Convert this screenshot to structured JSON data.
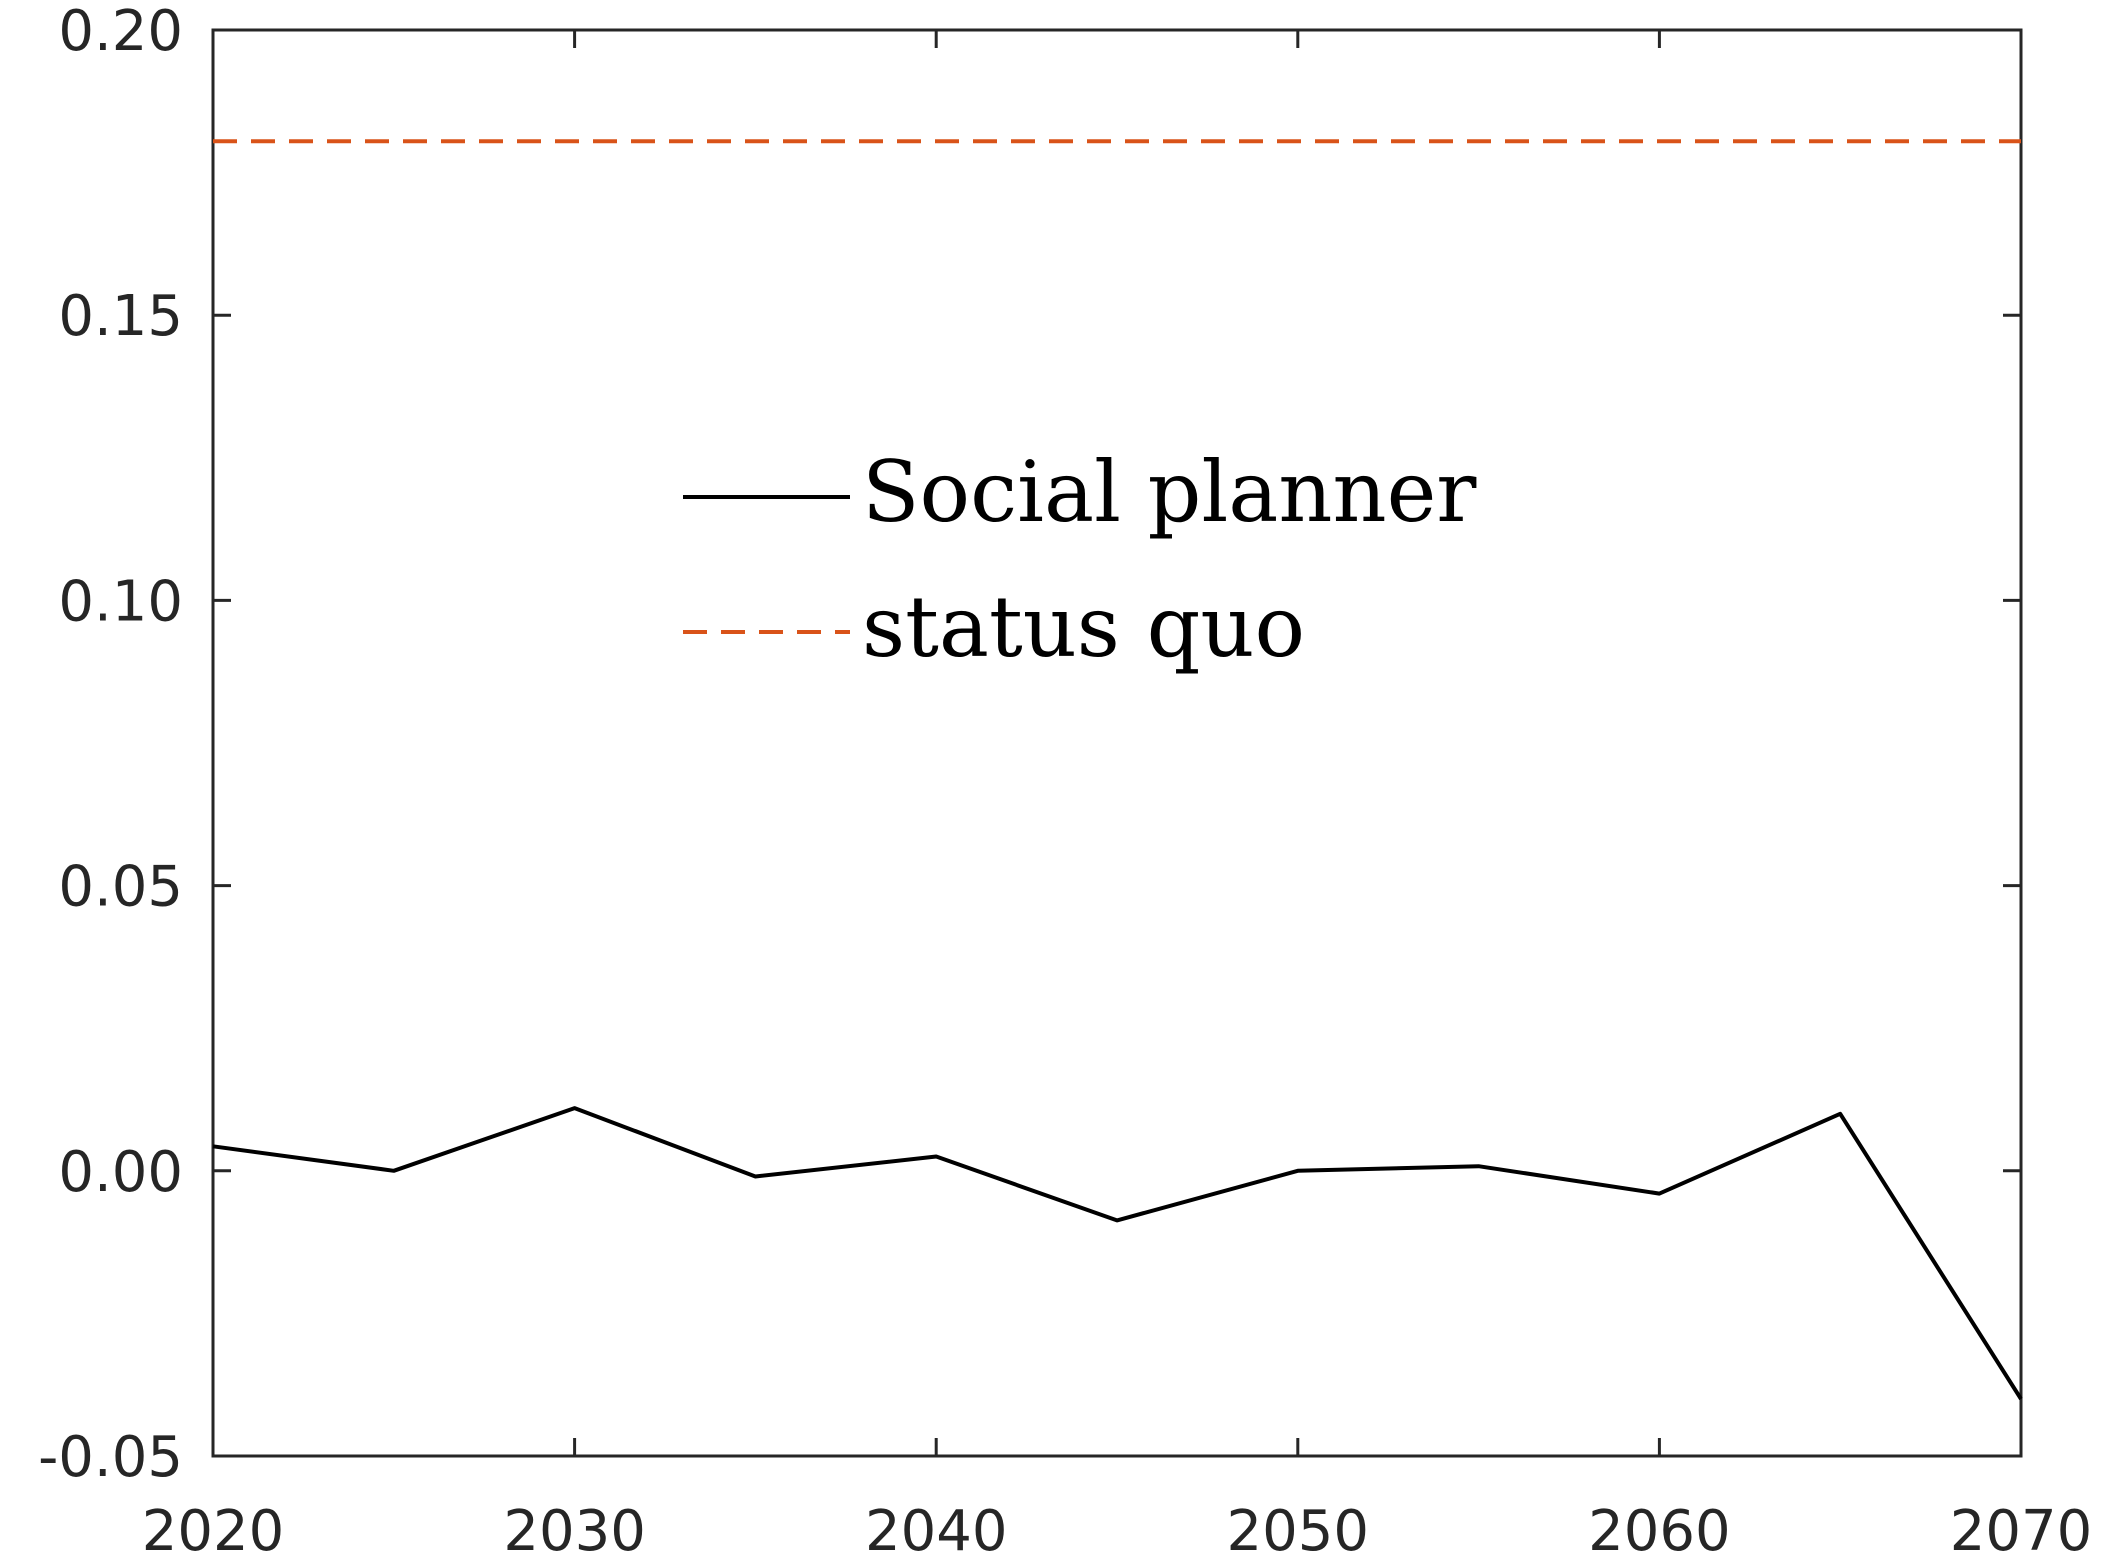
{
  "chart_data": {
    "type": "line",
    "title": "",
    "xlabel": "",
    "ylabel": "",
    "xlim": [
      2020,
      2070
    ],
    "ylim": [
      -0.05,
      0.2
    ],
    "xticks": [
      2020,
      2030,
      2040,
      2050,
      2060,
      2070
    ],
    "xtick_labels": [
      "2020",
      "2030",
      "2040",
      "2050",
      "2060",
      "2070"
    ],
    "yticks": [
      -0.05,
      0.0,
      0.05,
      0.1,
      0.15,
      0.2
    ],
    "ytick_labels": [
      "-0.05",
      "0.00",
      "0.05",
      "0.10",
      "0.15",
      "0.20"
    ],
    "grid": false,
    "legend_position": "center",
    "series": [
      {
        "name": "Social planner",
        "color": "#000000",
        "style": "solid",
        "x": [
          2020,
          2025,
          2030,
          2035,
          2040,
          2045,
          2050,
          2055,
          2060,
          2065,
          2070
        ],
        "y": [
          0.0043,
          0.0,
          0.011,
          -0.001,
          0.0025,
          -0.0087,
          0.0,
          0.0008,
          -0.004,
          0.01,
          -0.04
        ]
      },
      {
        "name": "status quo",
        "color": "#d95319",
        "style": "dashed",
        "x": [
          2020,
          2070
        ],
        "y": [
          0.1805,
          0.1805
        ]
      }
    ]
  }
}
